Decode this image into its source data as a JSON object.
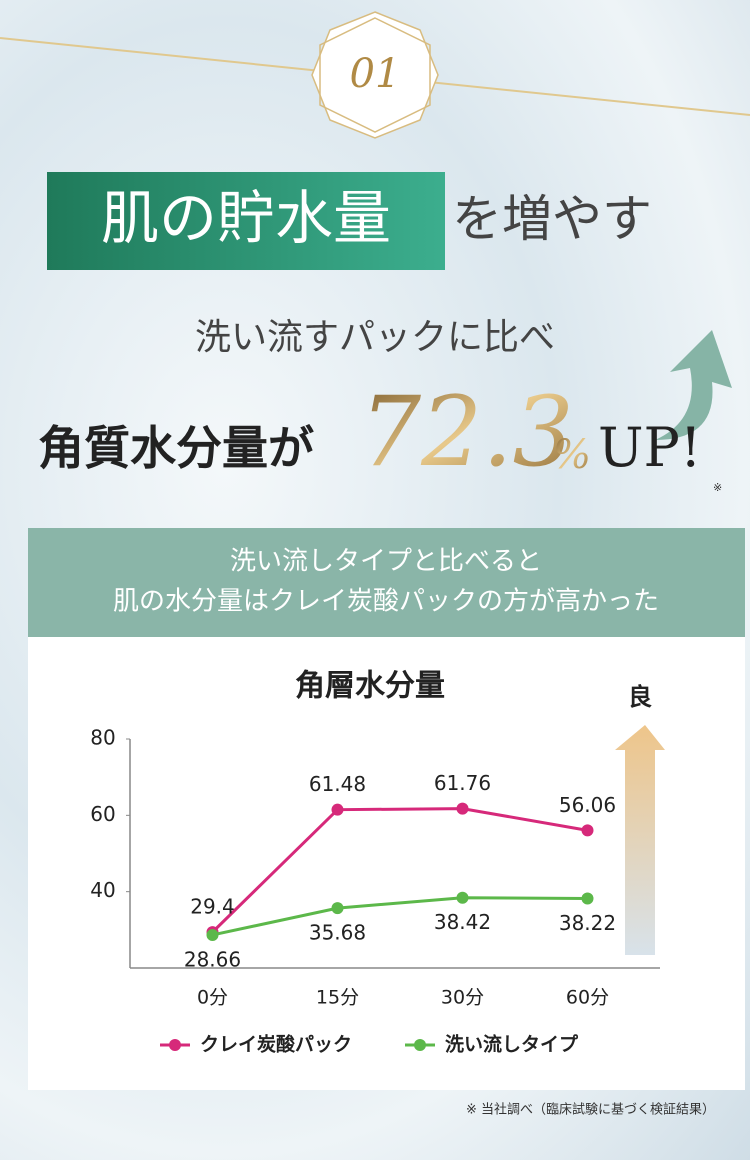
{
  "badge": "01",
  "headline": {
    "highlight": "肌の貯水量",
    "rest": "を増やす"
  },
  "lead": "洗い流すパックに比べ",
  "claim": {
    "prefix": "角質水分量が",
    "number": 72.3,
    "unit": "%",
    "suffix": "UP!",
    "note_mark": "※"
  },
  "banner": {
    "line1": "洗い流しタイプと比べると",
    "line2": "肌の水分量はクレイ炭酸パックの方が高かった"
  },
  "chart_data": {
    "type": "line",
    "title": "角層水分量",
    "indicator": "良",
    "categories": [
      "0分",
      "15分",
      "30分",
      "60分"
    ],
    "series": [
      {
        "name": "クレイ炭酸パック",
        "color": "#d6297a",
        "values": [
          29.4,
          61.48,
          61.76,
          56.06
        ]
      },
      {
        "name": "洗い流しタイプ",
        "color": "#5cb84a",
        "values": [
          28.66,
          35.68,
          38.42,
          38.22
        ]
      }
    ],
    "ylim": [
      20,
      80
    ],
    "yticks": [
      40,
      60,
      80
    ],
    "grid": false,
    "legend": "bottom"
  },
  "footnote": "※ 当社調べ（臨床試験に基づく検証結果）"
}
